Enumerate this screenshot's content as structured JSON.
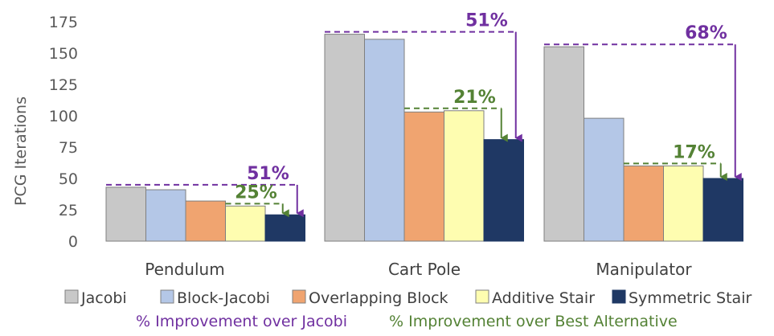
{
  "chart_data": {
    "type": "bar",
    "title": "",
    "xlabel": "",
    "ylabel": "PCG Iterations",
    "ylim": [
      0,
      175
    ],
    "yticks": [
      "0",
      "25",
      "50",
      "75",
      "100",
      "125",
      "150",
      "175"
    ],
    "ytick_values": [
      0,
      25,
      50,
      75,
      100,
      125,
      150,
      175
    ],
    "grid": false,
    "legend_position": "bottom",
    "categories": [
      "Pendulum",
      "Cart Pole",
      "Manipulator"
    ],
    "series": [
      {
        "name": "Jacobi",
        "values": [
          43,
          165,
          155
        ],
        "color": "#c8c8c8"
      },
      {
        "name": "Block-Jacobi",
        "values": [
          41,
          161,
          98
        ],
        "color": "#b4c7e7"
      },
      {
        "name": "Overlapping Block",
        "values": [
          32,
          103,
          60
        ],
        "color": "#f0a470"
      },
      {
        "name": "Additive Stair",
        "values": [
          28,
          104,
          60
        ],
        "color": "#fefdb0"
      },
      {
        "name": "Symmetric Stair",
        "values": [
          21,
          81,
          50
        ],
        "color": "#1f3864"
      }
    ],
    "annotations": [
      {
        "category": "Pendulum",
        "jacobi_label": "51%",
        "best_alt_label": "25%"
      },
      {
        "category": "Cart Pole",
        "jacobi_label": "51%",
        "best_alt_label": "21%"
      },
      {
        "category": "Manipulator",
        "jacobi_label": "68%",
        "best_alt_label": "17%"
      }
    ],
    "improvement_legend": [
      {
        "label": "% Improvement over Jacobi",
        "color": "#7030a0"
      },
      {
        "label": "% Improvement over Best Alternative",
        "color": "#548235"
      }
    ]
  }
}
